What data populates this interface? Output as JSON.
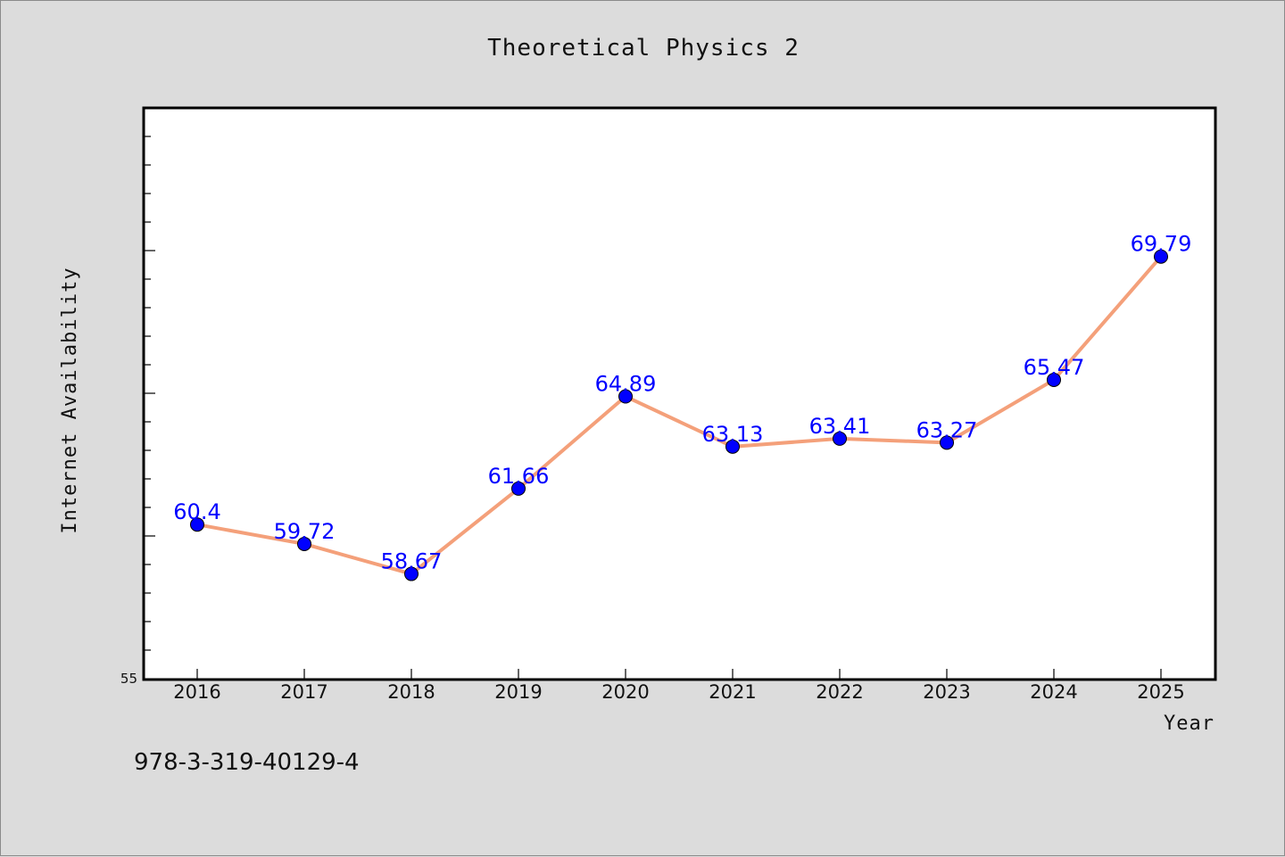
{
  "chart_data": {
    "type": "line",
    "title": "Theoretical Physics 2",
    "xlabel": "Year",
    "ylabel": "Internet Availability",
    "categories": [
      "2016",
      "2017",
      "2018",
      "2019",
      "2020",
      "2021",
      "2022",
      "2023",
      "2024",
      "2025"
    ],
    "series": [
      {
        "values": [
          60.4,
          59.72,
          58.67,
          61.66,
          64.89,
          63.13,
          63.41,
          63.27,
          65.47,
          69.79
        ],
        "data_labels": [
          "60.4",
          "59.72",
          "58.67",
          "61.66",
          "64.89",
          "63.13",
          "63.41",
          "63.27",
          "65.47",
          "69.79"
        ],
        "line_color": "#f4a07a",
        "marker_color": "#0000ff"
      }
    ],
    "ylim": [
      55,
      75
    ],
    "yticks_labeled": [
      "55"
    ],
    "grid": false,
    "legend": "none"
  },
  "footer": {
    "isbn": "978-3-319-40129-4"
  }
}
